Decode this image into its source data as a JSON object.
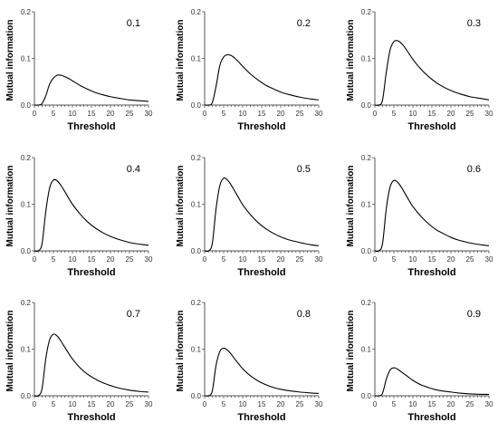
{
  "chart_data": [
    {
      "type": "line",
      "panel_label": "0.1",
      "xlabel": "Threshold",
      "ylabel": "Mutual information",
      "xlim": [
        0,
        30
      ],
      "ylim": [
        0,
        0.2
      ],
      "x_ticks": [
        0,
        5,
        10,
        15,
        20,
        25,
        30
      ],
      "y_ticks": [
        0,
        0.1,
        0.2
      ],
      "x_tick_labels": [
        "0",
        "5",
        "10",
        "15",
        "20",
        "25",
        "30"
      ],
      "y_tick_labels": [
        "0.0",
        "0.1",
        "0.2"
      ],
      "series": [
        {
          "x": [
            0,
            1,
            2,
            3,
            4,
            5,
            6,
            7,
            8,
            9,
            10,
            12,
            14,
            16,
            18,
            20,
            22,
            25,
            28,
            30
          ],
          "y": [
            0,
            0,
            0.003,
            0.02,
            0.045,
            0.058,
            0.064,
            0.064,
            0.061,
            0.057,
            0.052,
            0.042,
            0.034,
            0.027,
            0.022,
            0.018,
            0.015,
            0.011,
            0.009,
            0.008
          ]
        }
      ]
    },
    {
      "type": "line",
      "panel_label": "0.2",
      "xlabel": "Threshold",
      "ylabel": "Mutual information",
      "xlim": [
        0,
        30
      ],
      "ylim": [
        0,
        0.2
      ],
      "x_ticks": [
        0,
        5,
        10,
        15,
        20,
        25,
        30
      ],
      "y_ticks": [
        0,
        0.1,
        0.2
      ],
      "x_tick_labels": [
        "0",
        "5",
        "10",
        "15",
        "20",
        "25",
        "30"
      ],
      "y_tick_labels": [
        "0.0",
        "0.1",
        "0.2"
      ],
      "series": [
        {
          "x": [
            0,
            1,
            2,
            3,
            4,
            5,
            6,
            7,
            8,
            9,
            10,
            12,
            14,
            16,
            18,
            20,
            22,
            25,
            28,
            30
          ],
          "y": [
            0,
            0,
            0.005,
            0.04,
            0.085,
            0.103,
            0.108,
            0.106,
            0.1,
            0.092,
            0.083,
            0.067,
            0.054,
            0.043,
            0.035,
            0.028,
            0.023,
            0.017,
            0.013,
            0.011
          ]
        }
      ]
    },
    {
      "type": "line",
      "panel_label": "0.3",
      "xlabel": "Threshold",
      "ylabel": "Mutual information",
      "xlim": [
        0,
        30
      ],
      "ylim": [
        0,
        0.2
      ],
      "x_ticks": [
        0,
        5,
        10,
        15,
        20,
        25,
        30
      ],
      "y_ticks": [
        0,
        0.1,
        0.2
      ],
      "x_tick_labels": [
        "0",
        "5",
        "10",
        "15",
        "20",
        "25",
        "30"
      ],
      "y_tick_labels": [
        "0.0",
        "0.1",
        "0.2"
      ],
      "series": [
        {
          "x": [
            0,
            1,
            2,
            3,
            4,
            5,
            6,
            7,
            8,
            9,
            10,
            12,
            14,
            16,
            18,
            20,
            22,
            25,
            28,
            30
          ],
          "y": [
            0,
            0,
            0.01,
            0.07,
            0.118,
            0.136,
            0.138,
            0.132,
            0.122,
            0.11,
            0.098,
            0.078,
            0.062,
            0.049,
            0.039,
            0.031,
            0.025,
            0.018,
            0.014,
            0.011
          ]
        }
      ]
    },
    {
      "type": "line",
      "panel_label": "0.4",
      "xlabel": "Threshold",
      "ylabel": "Mutual information",
      "xlim": [
        0,
        30
      ],
      "ylim": [
        0,
        0.2
      ],
      "x_ticks": [
        0,
        5,
        10,
        15,
        20,
        25,
        30
      ],
      "y_ticks": [
        0,
        0.1,
        0.2
      ],
      "x_tick_labels": [
        "0",
        "5",
        "10",
        "15",
        "20",
        "25",
        "30"
      ],
      "y_tick_labels": [
        "0.0",
        "0.1",
        "0.2"
      ],
      "series": [
        {
          "x": [
            0,
            1,
            2,
            3,
            4,
            5,
            6,
            7,
            8,
            9,
            10,
            12,
            14,
            16,
            18,
            20,
            22,
            25,
            28,
            30
          ],
          "y": [
            0,
            0,
            0.015,
            0.085,
            0.135,
            0.152,
            0.15,
            0.14,
            0.127,
            0.113,
            0.1,
            0.079,
            0.062,
            0.049,
            0.039,
            0.031,
            0.025,
            0.018,
            0.014,
            0.012
          ]
        }
      ]
    },
    {
      "type": "line",
      "panel_label": "0.5",
      "xlabel": "Threshold",
      "ylabel": "Mutual information",
      "xlim": [
        0,
        30
      ],
      "ylim": [
        0,
        0.2
      ],
      "x_ticks": [
        0,
        5,
        10,
        15,
        20,
        25,
        30
      ],
      "y_ticks": [
        0,
        0.1,
        0.2
      ],
      "x_tick_labels": [
        "0",
        "5",
        "10",
        "15",
        "20",
        "25",
        "30"
      ],
      "y_tick_labels": [
        "0.0",
        "0.1",
        "0.2"
      ],
      "series": [
        {
          "x": [
            0,
            1,
            2,
            3,
            4,
            5,
            6,
            7,
            8,
            9,
            10,
            12,
            14,
            16,
            18,
            20,
            22,
            25,
            28,
            30
          ],
          "y": [
            0,
            0,
            0.015,
            0.09,
            0.14,
            0.156,
            0.152,
            0.141,
            0.127,
            0.113,
            0.099,
            0.078,
            0.061,
            0.048,
            0.038,
            0.03,
            0.024,
            0.018,
            0.013,
            0.011
          ]
        }
      ]
    },
    {
      "type": "line",
      "panel_label": "0.6",
      "xlabel": "Threshold",
      "ylabel": "Mutual information",
      "xlim": [
        0,
        30
      ],
      "ylim": [
        0,
        0.2
      ],
      "x_ticks": [
        0,
        5,
        10,
        15,
        20,
        25,
        30
      ],
      "y_ticks": [
        0,
        0.1,
        0.2
      ],
      "x_tick_labels": [
        "0",
        "5",
        "10",
        "15",
        "20",
        "25",
        "30"
      ],
      "y_tick_labels": [
        "0.0",
        "0.1",
        "0.2"
      ],
      "series": [
        {
          "x": [
            0,
            1,
            2,
            3,
            4,
            5,
            6,
            7,
            8,
            9,
            10,
            12,
            14,
            16,
            18,
            20,
            22,
            25,
            28,
            30
          ],
          "y": [
            0,
            0,
            0.015,
            0.09,
            0.137,
            0.151,
            0.147,
            0.136,
            0.122,
            0.108,
            0.095,
            0.075,
            0.059,
            0.046,
            0.037,
            0.029,
            0.023,
            0.017,
            0.013,
            0.011
          ]
        }
      ]
    },
    {
      "type": "line",
      "panel_label": "0.7",
      "xlabel": "Threshold",
      "ylabel": "Mutual information",
      "xlim": [
        0,
        30
      ],
      "ylim": [
        0,
        0.2
      ],
      "x_ticks": [
        0,
        5,
        10,
        15,
        20,
        25,
        30
      ],
      "y_ticks": [
        0,
        0.1,
        0.2
      ],
      "x_tick_labels": [
        "0",
        "5",
        "10",
        "15",
        "20",
        "25",
        "30"
      ],
      "y_tick_labels": [
        "0.0",
        "0.1",
        "0.2"
      ],
      "series": [
        {
          "x": [
            0,
            1,
            2,
            3,
            4,
            5,
            6,
            7,
            8,
            9,
            10,
            12,
            14,
            16,
            18,
            20,
            22,
            25,
            28,
            30
          ],
          "y": [
            0,
            0,
            0.015,
            0.08,
            0.12,
            0.132,
            0.128,
            0.117,
            0.104,
            0.091,
            0.079,
            0.06,
            0.046,
            0.036,
            0.028,
            0.022,
            0.017,
            0.012,
            0.009,
            0.008
          ]
        }
      ]
    },
    {
      "type": "line",
      "panel_label": "0.8",
      "xlabel": "Threshold",
      "ylabel": "Mutual information",
      "xlim": [
        0,
        30
      ],
      "ylim": [
        0,
        0.2
      ],
      "x_ticks": [
        0,
        5,
        10,
        15,
        20,
        25,
        30
      ],
      "y_ticks": [
        0,
        0.1,
        0.2
      ],
      "x_tick_labels": [
        "0",
        "5",
        "10",
        "15",
        "20",
        "25",
        "30"
      ],
      "y_tick_labels": [
        "0.0",
        "0.1",
        "0.2"
      ],
      "series": [
        {
          "x": [
            0,
            1,
            2,
            3,
            4,
            5,
            6,
            7,
            8,
            9,
            10,
            12,
            14,
            16,
            18,
            20,
            22,
            25,
            28,
            30
          ],
          "y": [
            0,
            0,
            0.01,
            0.065,
            0.095,
            0.102,
            0.098,
            0.089,
            0.078,
            0.068,
            0.058,
            0.043,
            0.032,
            0.024,
            0.018,
            0.014,
            0.011,
            0.008,
            0.006,
            0.005
          ]
        }
      ]
    },
    {
      "type": "line",
      "panel_label": "0.9",
      "xlabel": "Threshold",
      "ylabel": "Mutual information",
      "xlim": [
        0,
        30
      ],
      "ylim": [
        0,
        0.2
      ],
      "x_ticks": [
        0,
        5,
        10,
        15,
        20,
        25,
        30
      ],
      "y_ticks": [
        0,
        0.1,
        0.2
      ],
      "x_tick_labels": [
        "0",
        "5",
        "10",
        "15",
        "20",
        "25",
        "30"
      ],
      "y_tick_labels": [
        "0.0",
        "0.1",
        "0.2"
      ],
      "series": [
        {
          "x": [
            0,
            1,
            2,
            3,
            4,
            5,
            6,
            7,
            8,
            9,
            10,
            12,
            14,
            16,
            18,
            20,
            22,
            25,
            28,
            30
          ],
          "y": [
            0,
            0,
            0.005,
            0.035,
            0.055,
            0.06,
            0.057,
            0.051,
            0.045,
            0.039,
            0.033,
            0.024,
            0.018,
            0.013,
            0.01,
            0.008,
            0.006,
            0.004,
            0.003,
            0.003
          ]
        }
      ]
    }
  ],
  "style": {
    "line_color": "#000000",
    "axis_color": "#555555",
    "background": "#ffffff"
  }
}
